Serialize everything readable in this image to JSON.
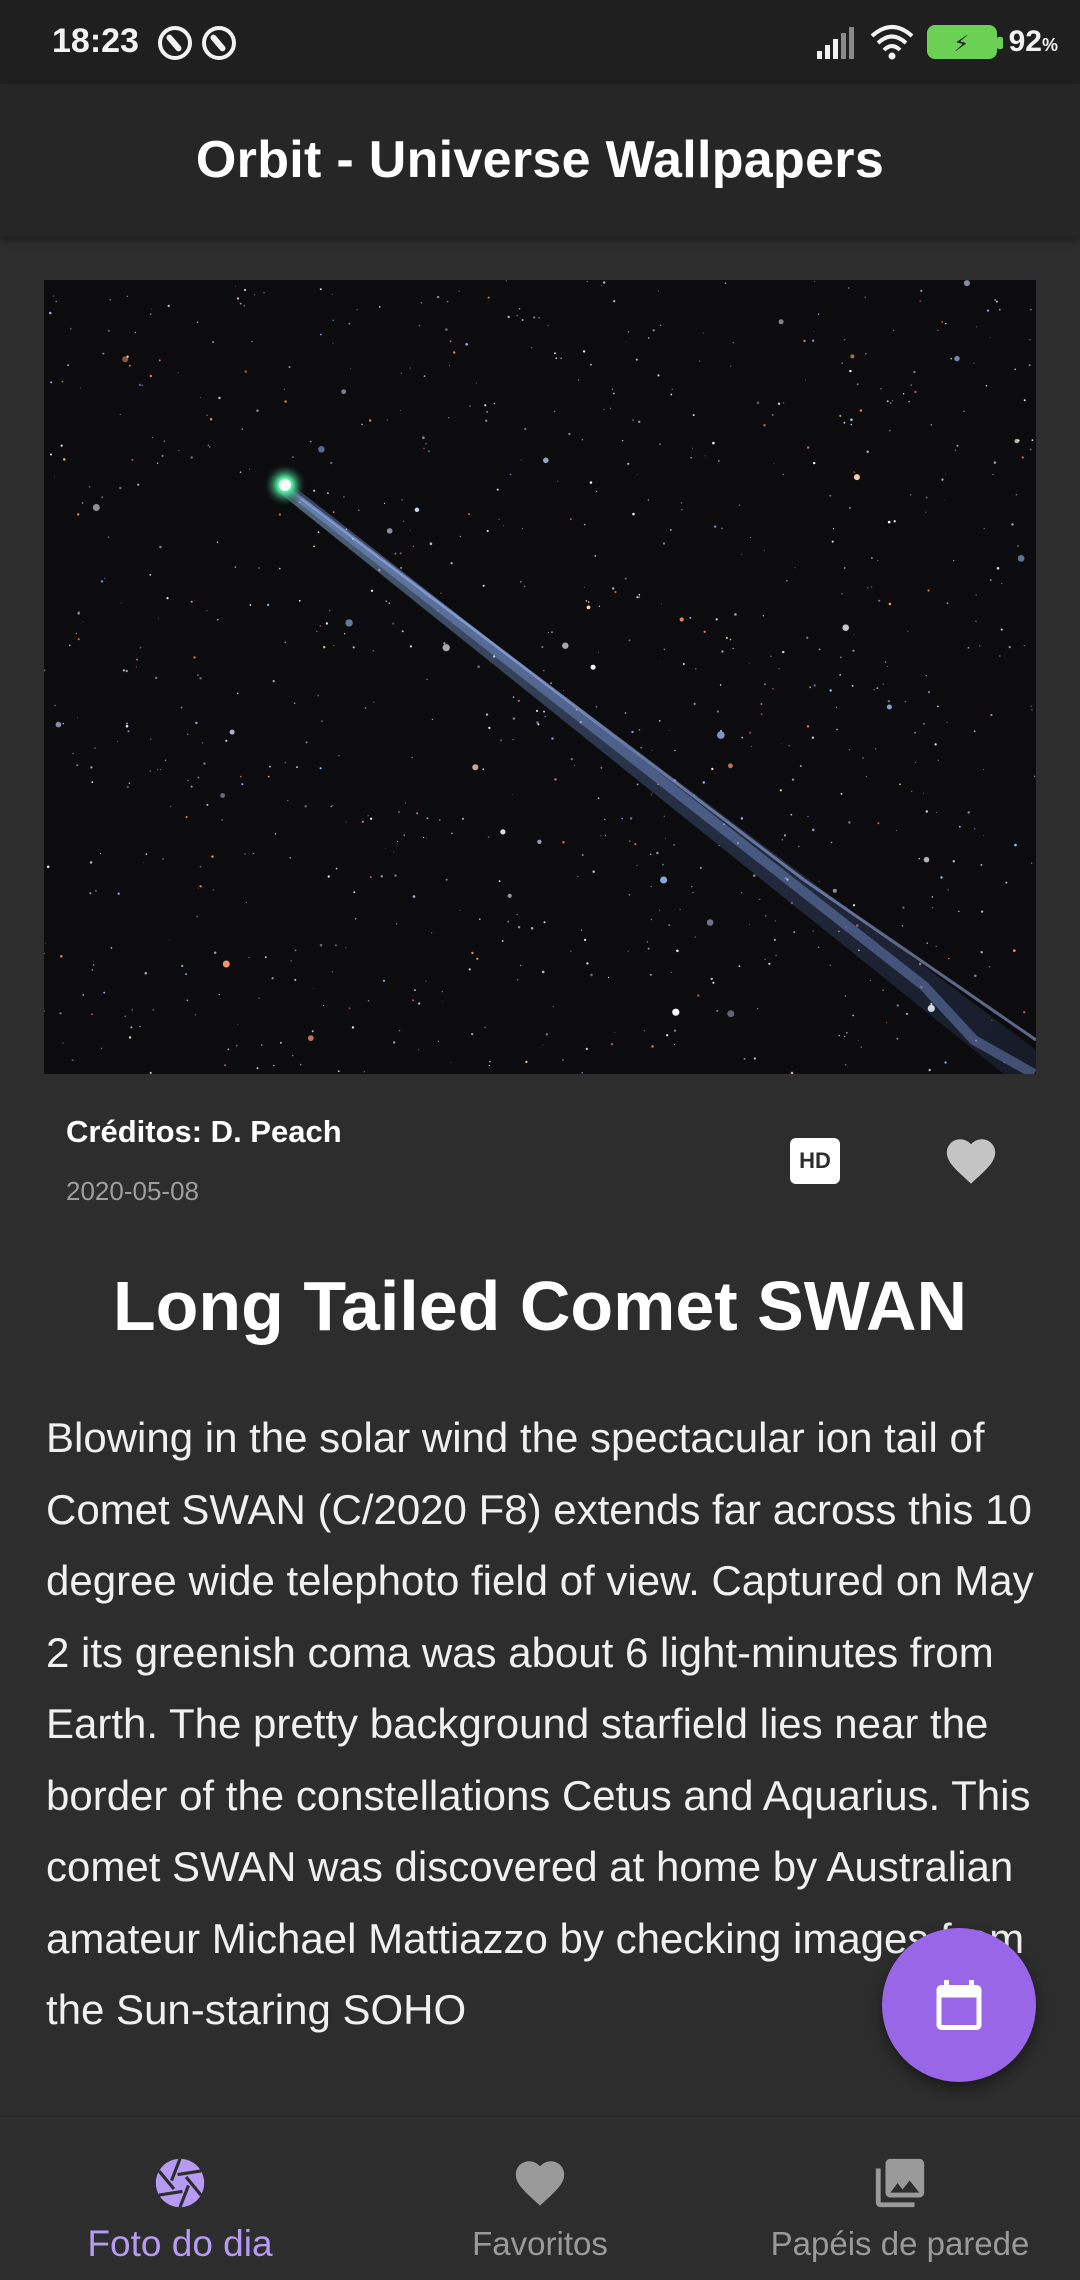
{
  "status_bar": {
    "time": "18:23",
    "battery_percent": "92",
    "battery_unit": "%",
    "icons": [
      "notification-a-icon",
      "notification-b-icon",
      "signal-icon",
      "wifi-icon",
      "battery-charging-icon"
    ]
  },
  "app_bar": {
    "title": "Orbit - Universe Wallpapers"
  },
  "photo": {
    "alt": "Comet SWAN ion tail across starfield"
  },
  "details": {
    "credits": "Créditos: D. Peach",
    "date": "2020-05-08",
    "hd_label": "HD"
  },
  "article": {
    "title": "Long Tailed Comet SWAN",
    "description": "Blowing in the solar wind the spectacular ion tail of Comet SWAN (C/2020 F8) extends far across this 10 degree wide telephoto field of view. Captured on May 2 its greenish coma was about 6 light-minutes from Earth. The pretty background starfield lies near the border of the constellations Cetus and Aquarius. This comet SWAN was discovered at home by Australian amateur Michael Mattiazzo by checking images from the Sun-staring SOHO"
  },
  "bottom_nav": {
    "items": [
      {
        "label": "Foto do dia",
        "icon": "aperture-icon",
        "active": true
      },
      {
        "label": "Favoritos",
        "icon": "heart-icon",
        "active": false
      },
      {
        "label": "Papéis de parede",
        "icon": "photo-library-icon",
        "active": false
      }
    ]
  },
  "colors": {
    "background": "#2d2d2d",
    "app_bar": "#262626",
    "accent": "#9a66e8",
    "active_nav": "#b79af2",
    "inactive_nav": "#9a9a9a"
  }
}
